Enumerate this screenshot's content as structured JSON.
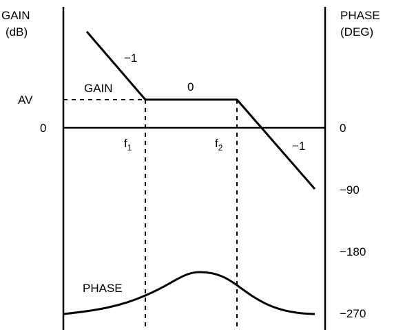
{
  "left_axis": {
    "title_line1": "GAIN",
    "title_line2": "(dB)",
    "tick_av": "AV",
    "tick_zero": "0"
  },
  "right_axis": {
    "title_line1": "PHASE",
    "title_line2": "(DEG)",
    "ticks": [
      "0",
      "−90",
      "−180",
      "−270"
    ]
  },
  "frequencies": {
    "f1": {
      "base": "f",
      "sub": "1"
    },
    "f2": {
      "base": "f",
      "sub": "2"
    }
  },
  "curve_labels": {
    "gain": "GAIN",
    "phase": "PHASE",
    "slope_left": "−1",
    "slope_flat": "0",
    "slope_right": "−1"
  }
}
